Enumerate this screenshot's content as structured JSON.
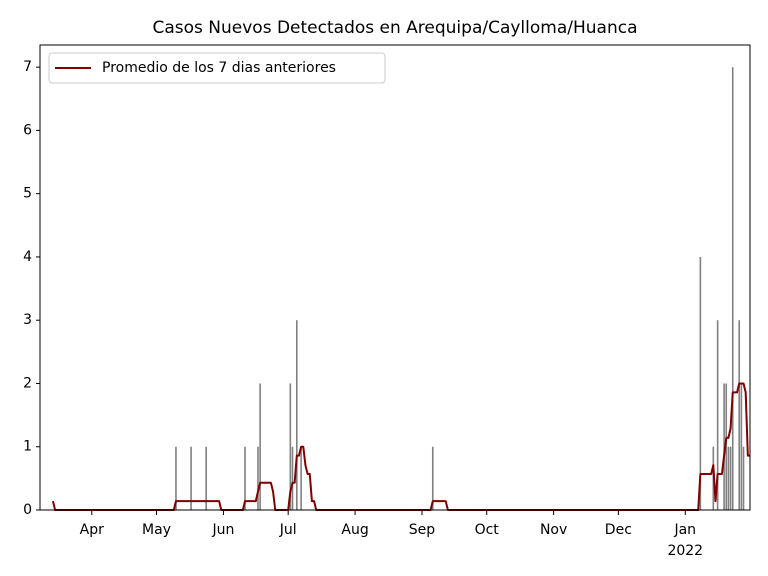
{
  "chart_data": {
    "type": "bar",
    "title": "Casos Nuevos Detectados en Arequipa/Caylloma/Huanca",
    "categories": [
      null,
      null,
      null,
      null,
      null,
      null,
      null,
      null,
      null,
      null,
      null,
      null,
      null,
      null,
      null,
      null,
      null,
      null,
      "Apr",
      null,
      null,
      null,
      null,
      null,
      null,
      null,
      null,
      null,
      null,
      null,
      null,
      null,
      null,
      null,
      null,
      null,
      null,
      null,
      null,
      null,
      null,
      null,
      null,
      null,
      null,
      null,
      null,
      null,
      "May",
      null,
      null,
      null,
      null,
      null,
      null,
      null,
      null,
      null,
      null,
      null,
      null,
      null,
      null,
      null,
      null,
      null,
      null,
      null,
      null,
      null,
      null,
      null,
      null,
      null,
      null,
      null,
      null,
      null,
      null,
      "Jun",
      null,
      null,
      null,
      null,
      null,
      null,
      null,
      null,
      null,
      null,
      null,
      null,
      null,
      null,
      null,
      null,
      null,
      null,
      null,
      null,
      null,
      null,
      null,
      null,
      null,
      null,
      null,
      null,
      null,
      "Jul",
      null,
      null,
      null,
      null,
      null,
      null,
      null,
      null,
      null,
      null,
      null,
      null,
      null,
      null,
      null,
      null,
      null,
      null,
      null,
      null,
      null,
      null,
      null,
      null,
      null,
      null,
      null,
      null,
      null,
      null,
      "Aug",
      null,
      null,
      null,
      null,
      null,
      null,
      null,
      null,
      null,
      null,
      null,
      null,
      null,
      null,
      null,
      null,
      null,
      null,
      null,
      null,
      null,
      null,
      null,
      null,
      null,
      null,
      null,
      null,
      null,
      null,
      "Sep",
      null,
      null,
      null,
      null,
      null,
      null,
      null,
      null,
      null,
      null,
      null,
      null,
      null,
      null,
      null,
      null,
      null,
      null,
      null,
      null,
      null,
      null,
      null,
      null,
      null,
      null,
      null,
      null,
      null,
      "Oct",
      null,
      null,
      null,
      null,
      null,
      null,
      null,
      null,
      null,
      null,
      null,
      null,
      null,
      null,
      null,
      null,
      null,
      null,
      null,
      null,
      null,
      null,
      null,
      null,
      null,
      null,
      null,
      null,
      null,
      null,
      "Nov",
      null,
      null,
      null,
      null,
      null,
      null,
      null,
      null,
      null,
      null,
      null,
      null,
      null,
      null,
      null,
      null,
      null,
      null,
      null,
      null,
      null,
      null,
      null,
      null,
      null,
      null,
      null,
      null,
      null,
      "Dec",
      null,
      null,
      null,
      null,
      null,
      null,
      null,
      null,
      null,
      null,
      null,
      null,
      null,
      null,
      null,
      null,
      null,
      null,
      null,
      null,
      null,
      null,
      null,
      null,
      null,
      null,
      null,
      null,
      null,
      null,
      "Jan\n2022",
      null,
      null,
      null,
      null,
      null,
      null,
      null,
      null,
      null,
      null,
      null,
      null,
      null,
      null,
      null,
      null,
      null,
      null,
      null,
      null,
      null,
      null,
      null,
      null,
      null,
      null,
      null,
      null,
      null,
      null
    ],
    "bars": {
      "color": "#808080",
      "values": [
        0,
        0,
        0,
        0,
        0,
        0,
        0,
        0,
        0,
        0,
        0,
        0,
        0,
        0,
        0,
        0,
        0,
        0,
        0,
        0,
        0,
        0,
        0,
        0,
        0,
        0,
        0,
        0,
        0,
        0,
        0,
        0,
        0,
        0,
        0,
        0,
        0,
        0,
        0,
        0,
        0,
        0,
        0,
        0,
        0,
        0,
        0,
        0,
        0,
        0,
        0,
        0,
        0,
        0,
        0,
        0,
        0,
        1,
        0,
        0,
        0,
        0,
        0,
        0,
        1,
        0,
        0,
        0,
        0,
        0,
        0,
        1,
        0,
        0,
        0,
        0,
        0,
        0,
        0,
        0,
        0,
        0,
        0,
        0,
        0,
        0,
        0,
        0,
        0,
        1,
        0,
        0,
        0,
        0,
        0,
        1,
        2,
        0,
        0,
        0,
        0,
        0,
        0,
        0,
        0,
        0,
        0,
        0,
        0,
        0,
        2,
        1,
        0,
        3,
        0,
        1,
        0,
        0,
        0,
        0,
        0,
        0,
        0,
        0,
        0,
        0,
        0,
        0,
        0,
        0,
        0,
        0,
        0,
        0,
        0,
        0,
        0,
        0,
        0,
        0,
        0,
        0,
        0,
        0,
        0,
        0,
        0,
        0,
        0,
        0,
        0,
        0,
        0,
        0,
        0,
        0,
        0,
        0,
        0,
        0,
        0,
        0,
        0,
        0,
        0,
        0,
        0,
        0,
        0,
        0,
        0,
        0,
        0,
        0,
        0,
        0,
        1,
        0,
        0,
        0,
        0,
        0,
        0,
        0,
        0,
        0,
        0,
        0,
        0,
        0,
        0,
        0,
        0,
        0,
        0,
        0,
        0,
        0,
        0,
        0,
        0,
        0,
        0,
        0,
        0,
        0,
        0,
        0,
        0,
        0,
        0,
        0,
        0,
        0,
        0,
        0,
        0,
        0,
        0,
        0,
        0,
        0,
        0,
        0,
        0,
        0,
        0,
        0,
        0,
        0,
        0,
        0,
        0,
        0,
        0,
        0,
        0,
        0,
        0,
        0,
        0,
        0,
        0,
        0,
        0,
        0,
        0,
        0,
        0,
        0,
        0,
        0,
        0,
        0,
        0,
        0,
        0,
        0,
        0,
        0,
        0,
        0,
        0,
        0,
        0,
        0,
        0,
        0,
        0,
        0,
        0,
        0,
        0,
        0,
        0,
        0,
        0,
        0,
        0,
        0,
        0,
        0,
        0,
        0,
        0,
        0,
        0,
        0,
        0,
        0,
        0,
        0,
        0,
        0,
        0,
        0,
        0,
        0,
        0,
        0,
        4,
        0,
        0,
        0,
        0,
        0,
        1,
        0,
        3,
        0,
        0,
        2,
        2,
        1,
        1,
        7,
        0,
        0,
        3,
        2,
        1,
        0,
        0,
        0
      ]
    },
    "series": [
      {
        "name": "Promedio de los 7 dias anteriores",
        "color": "#800000",
        "values": [
          0.14,
          0,
          0,
          0,
          0,
          0,
          0,
          0,
          0,
          0,
          0,
          0,
          0,
          0,
          0,
          0,
          0,
          0,
          0,
          0,
          0,
          0,
          0,
          0,
          0,
          0,
          0,
          0,
          0,
          0,
          0,
          0,
          0,
          0,
          0,
          0,
          0,
          0,
          0,
          0,
          0,
          0,
          0,
          0,
          0,
          0,
          0,
          0,
          0,
          0,
          0,
          0,
          0,
          0,
          0,
          0,
          0,
          0.14,
          0.14,
          0.14,
          0.14,
          0.14,
          0.14,
          0.14,
          0.14,
          0.14,
          0.14,
          0.14,
          0.14,
          0.14,
          0.14,
          0.14,
          0.14,
          0.14,
          0.14,
          0.14,
          0.14,
          0.14,
          0,
          0,
          0,
          0,
          0,
          0,
          0,
          0,
          0,
          0,
          0,
          0.14,
          0.14,
          0.14,
          0.14,
          0.14,
          0.14,
          0.29,
          0.43,
          0.43,
          0.43,
          0.43,
          0.43,
          0.43,
          0.29,
          0,
          0,
          0,
          0,
          0,
          0,
          0,
          0.29,
          0.43,
          0.43,
          0.86,
          0.86,
          1,
          1,
          0.71,
          0.57,
          0.57,
          0.14,
          0.14,
          0,
          0,
          0,
          0,
          0,
          0,
          0,
          0,
          0,
          0,
          0,
          0,
          0,
          0,
          0,
          0,
          0,
          0,
          0,
          0,
          0,
          0,
          0,
          0,
          0,
          0,
          0,
          0,
          0,
          0,
          0,
          0,
          0,
          0,
          0,
          0,
          0,
          0,
          0,
          0,
          0,
          0,
          0,
          0,
          0,
          0,
          0,
          0,
          0,
          0,
          0,
          0,
          0,
          0,
          0.14,
          0.14,
          0.14,
          0.14,
          0.14,
          0.14,
          0.14,
          0,
          0,
          0,
          0,
          0,
          0,
          0,
          0,
          0,
          0,
          0,
          0,
          0,
          0,
          0,
          0,
          0,
          0,
          0,
          0,
          0,
          0,
          0,
          0,
          0,
          0,
          0,
          0,
          0,
          0,
          0,
          0,
          0,
          0,
          0,
          0,
          0,
          0,
          0,
          0,
          0,
          0,
          0,
          0,
          0,
          0,
          0,
          0,
          0,
          0,
          0,
          0,
          0,
          0,
          0,
          0,
          0,
          0,
          0,
          0,
          0,
          0,
          0,
          0,
          0,
          0,
          0,
          0,
          0,
          0,
          0,
          0,
          0,
          0,
          0,
          0,
          0,
          0,
          0,
          0,
          0,
          0,
          0,
          0,
          0,
          0,
          0,
          0,
          0,
          0,
          0,
          0,
          0,
          0,
          0,
          0,
          0,
          0,
          0,
          0,
          0,
          0,
          0,
          0,
          0,
          0,
          0,
          0,
          0,
          0,
          0,
          0,
          0,
          0,
          0,
          0,
          0,
          0.57,
          0.57,
          0.57,
          0.57,
          0.57,
          0.57,
          0.71,
          0.14,
          0.57,
          0.57,
          0.57,
          0.86,
          1.14,
          1.14,
          1.29,
          1.86,
          1.86,
          1.86,
          2,
          2,
          2,
          1.86,
          0.86,
          0.86
        ]
      }
    ],
    "ylim": [
      0,
      7.35
    ],
    "yticks": [
      0,
      1,
      2,
      3,
      4,
      5,
      6,
      7
    ],
    "legend": "upper left",
    "grid": false
  }
}
